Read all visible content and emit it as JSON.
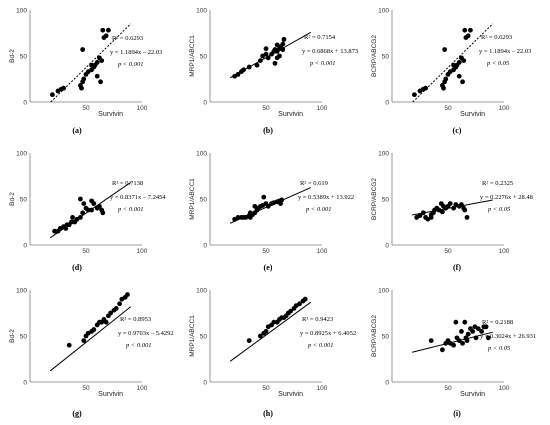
{
  "chart_data": [
    {
      "type": "scatter",
      "panel_label": "(a)",
      "ylabel": "Bd-2",
      "xlabel": "Survivin",
      "yticks": [
        "100",
        "50",
        "0"
      ],
      "xticks": [
        "50",
        "100"
      ],
      "xlim": [
        0,
        100
      ],
      "ylim": [
        0,
        100
      ],
      "r2": "R² = 0.6293",
      "equation": "y = 1.1894x – 22.03",
      "pvalue": "p < 0.001",
      "line_style": "dotted",
      "fit": [
        1.1894,
        -22.03
      ],
      "points": [
        [
          20,
          8
        ],
        [
          25,
          12
        ],
        [
          28,
          14
        ],
        [
          30,
          15
        ],
        [
          45,
          18
        ],
        [
          46,
          15
        ],
        [
          47,
          22
        ],
        [
          48,
          25
        ],
        [
          50,
          30
        ],
        [
          52,
          33
        ],
        [
          55,
          35
        ],
        [
          57,
          38
        ],
        [
          58,
          40
        ],
        [
          60,
          43
        ],
        [
          62,
          48
        ],
        [
          63,
          22
        ],
        [
          64,
          45
        ],
        [
          65,
          78
        ],
        [
          66,
          70
        ],
        [
          68,
          72
        ],
        [
          70,
          78
        ],
        [
          47,
          57
        ],
        [
          55,
          40
        ],
        [
          60,
          28
        ]
      ]
    },
    {
      "type": "scatter",
      "panel_label": "(b)",
      "ylabel": "MRP1/ABCC1",
      "xlabel": "Survivin",
      "yticks": [
        "100",
        "50",
        "0"
      ],
      "xticks": [
        "50",
        "100"
      ],
      "xlim": [
        0,
        100
      ],
      "ylim": [
        0,
        100
      ],
      "r2": "R² = 0.7154",
      "equation": "y = 0.6868x + 13.873",
      "pvalue": "p < 0.001",
      "line_style": "solid",
      "fit": [
        0.6868,
        13.873
      ],
      "points": [
        [
          22,
          28
        ],
        [
          25,
          30
        ],
        [
          28,
          33
        ],
        [
          30,
          35
        ],
        [
          35,
          38
        ],
        [
          45,
          45
        ],
        [
          47,
          50
        ],
        [
          50,
          52
        ],
        [
          50,
          58
        ],
        [
          52,
          48
        ],
        [
          55,
          52
        ],
        [
          57,
          55
        ],
        [
          58,
          57
        ],
        [
          60,
          55
        ],
        [
          60,
          62
        ],
        [
          62,
          50
        ],
        [
          62,
          58
        ],
        [
          63,
          60
        ],
        [
          65,
          57
        ],
        [
          65,
          63
        ],
        [
          66,
          68
        ],
        [
          58,
          42
        ],
        [
          42,
          40
        ],
        [
          60,
          48
        ]
      ]
    },
    {
      "type": "scatter",
      "panel_label": "(c)",
      "ylabel": "BCRP/ABCG2",
      "xlabel": "Survivin",
      "yticks": [
        "100",
        "50",
        "0"
      ],
      "xticks": [
        "50",
        "100"
      ],
      "xlim": [
        0,
        100
      ],
      "ylim": [
        0,
        100
      ],
      "r2": "R² = 0.6293",
      "equation": "y = 1.1894x – 22.03",
      "pvalue": "p < 0.05",
      "line_style": "dotted",
      "fit": [
        1.1894,
        -22.03
      ],
      "points": [
        [
          20,
          8
        ],
        [
          25,
          12
        ],
        [
          28,
          14
        ],
        [
          30,
          15
        ],
        [
          45,
          18
        ],
        [
          46,
          15
        ],
        [
          47,
          22
        ],
        [
          48,
          25
        ],
        [
          50,
          30
        ],
        [
          52,
          33
        ],
        [
          55,
          35
        ],
        [
          57,
          38
        ],
        [
          58,
          40
        ],
        [
          60,
          43
        ],
        [
          62,
          48
        ],
        [
          63,
          22
        ],
        [
          64,
          45
        ],
        [
          65,
          78
        ],
        [
          66,
          70
        ],
        [
          68,
          72
        ],
        [
          70,
          78
        ],
        [
          47,
          57
        ],
        [
          55,
          40
        ],
        [
          60,
          28
        ]
      ]
    },
    {
      "type": "scatter",
      "panel_label": "(d)",
      "ylabel": "Bd-2",
      "xlabel": "",
      "yticks": [
        "100",
        "50",
        "0"
      ],
      "xticks": [
        "50",
        "100"
      ],
      "xlim": [
        0,
        100
      ],
      "ylim": [
        0,
        100
      ],
      "r2": "R² = 0.7138",
      "equation": "y = 0.8371x – 7.2454",
      "pvalue": "p < 0.001",
      "line_style": "solid",
      "fit": [
        0.8371,
        -7.2454
      ],
      "points": [
        [
          22,
          15
        ],
        [
          25,
          15
        ],
        [
          27,
          18
        ],
        [
          30,
          20
        ],
        [
          32,
          18
        ],
        [
          33,
          22
        ],
        [
          35,
          22
        ],
        [
          37,
          25
        ],
        [
          40,
          25
        ],
        [
          42,
          28
        ],
        [
          45,
          30
        ],
        [
          47,
          35
        ],
        [
          48,
          45
        ],
        [
          50,
          40
        ],
        [
          52,
          38
        ],
        [
          55,
          38
        ],
        [
          57,
          45
        ],
        [
          60,
          40
        ],
        [
          62,
          42
        ],
        [
          64,
          38
        ],
        [
          65,
          35
        ],
        [
          45,
          50
        ],
        [
          55,
          48
        ],
        [
          38,
          30
        ]
      ]
    },
    {
      "type": "scatter",
      "panel_label": "(e)",
      "ylabel": "MRP1/ABCC1",
      "xlabel": "",
      "yticks": [
        "100",
        "50",
        "0"
      ],
      "xticks": [
        "50",
        "100"
      ],
      "xlim": [
        0,
        100
      ],
      "ylim": [
        0,
        100
      ],
      "r2": "R² = 0.619",
      "equation": "y = 0.5389x + 13.922",
      "pvalue": "p < 0.001",
      "line_style": "solid",
      "fit": [
        0.5389,
        13.922
      ],
      "points": [
        [
          22,
          28
        ],
        [
          25,
          30
        ],
        [
          28,
          30
        ],
        [
          30,
          30
        ],
        [
          32,
          30
        ],
        [
          35,
          32
        ],
        [
          36,
          30
        ],
        [
          38,
          33
        ],
        [
          40,
          35
        ],
        [
          42,
          38
        ],
        [
          43,
          40
        ],
        [
          45,
          42
        ],
        [
          47,
          43
        ],
        [
          48,
          52
        ],
        [
          50,
          45
        ],
        [
          52,
          42
        ],
        [
          55,
          45
        ],
        [
          57,
          46
        ],
        [
          60,
          47
        ],
        [
          62,
          48
        ],
        [
          63,
          45
        ],
        [
          64,
          49
        ],
        [
          40,
          42
        ],
        [
          36,
          35
        ]
      ]
    },
    {
      "type": "scatter",
      "panel_label": "(f)",
      "ylabel": "BCRP/ABCG2",
      "xlabel": "",
      "yticks": [
        "100",
        "50",
        "0"
      ],
      "xticks": [
        "50",
        "100"
      ],
      "xlim": [
        0,
        100
      ],
      "ylim": [
        0,
        100
      ],
      "r2": "R² = 0.2325",
      "equation": "y = 0.2276x + 28.48",
      "pvalue": "p < 0.05",
      "line_style": "solid",
      "fit": [
        0.2276,
        28.48
      ],
      "points": [
        [
          22,
          30
        ],
        [
          25,
          32
        ],
        [
          28,
          35
        ],
        [
          30,
          30
        ],
        [
          32,
          28
        ],
        [
          35,
          30
        ],
        [
          37,
          35
        ],
        [
          38,
          38
        ],
        [
          40,
          40
        ],
        [
          42,
          38
        ],
        [
          44,
          45
        ],
        [
          46,
          42
        ],
        [
          48,
          40
        ],
        [
          50,
          42
        ],
        [
          52,
          45
        ],
        [
          55,
          40
        ],
        [
          57,
          44
        ],
        [
          60,
          42
        ],
        [
          62,
          44
        ],
        [
          64,
          40
        ],
        [
          65,
          38
        ],
        [
          67,
          30
        ],
        [
          45,
          36
        ],
        [
          35,
          33
        ]
      ]
    },
    {
      "type": "scatter",
      "panel_label": "(g)",
      "ylabel": "Bd-2",
      "xlabel": "Survivin",
      "yticks": [
        "100",
        "50",
        "0"
      ],
      "xticks": [
        "50",
        "100"
      ],
      "xlim": [
        0,
        100
      ],
      "ylim": [
        0,
        100
      ],
      "r2": "R² = 0.8953",
      "equation": "y = 0.9703x – 5.4292",
      "pvalue": "p < 0.001",
      "line_style": "solid",
      "fit": [
        0.9703,
        -5.4292
      ],
      "points": [
        [
          35,
          40
        ],
        [
          48,
          45
        ],
        [
          50,
          50
        ],
        [
          52,
          53
        ],
        [
          55,
          55
        ],
        [
          57,
          57
        ],
        [
          60,
          62
        ],
        [
          62,
          65
        ],
        [
          64,
          65
        ],
        [
          66,
          68
        ],
        [
          68,
          65
        ],
        [
          70,
          72
        ],
        [
          72,
          75
        ],
        [
          75,
          78
        ],
        [
          77,
          80
        ],
        [
          80,
          85
        ],
        [
          82,
          90
        ],
        [
          85,
          92
        ],
        [
          87,
          95
        ]
      ]
    },
    {
      "type": "scatter",
      "panel_label": "(h)",
      "ylabel": "MRP1/ABCC1",
      "xlabel": "Survivin",
      "yticks": [
        "100",
        "50",
        "0"
      ],
      "xticks": [
        "50",
        "100"
      ],
      "xlim": [
        0,
        100
      ],
      "ylim": [
        0,
        100
      ],
      "r2": "R² = 0.9423",
      "equation": "y = 0.8925x + 6.4052",
      "pvalue": "p < 0.001",
      "line_style": "solid",
      "fit": [
        0.8925,
        6.4052
      ],
      "points": [
        [
          35,
          45
        ],
        [
          45,
          50
        ],
        [
          48,
          53
        ],
        [
          50,
          55
        ],
        [
          52,
          60
        ],
        [
          55,
          62
        ],
        [
          57,
          65
        ],
        [
          60,
          65
        ],
        [
          62,
          68
        ],
        [
          64,
          70
        ],
        [
          66,
          70
        ],
        [
          68,
          72
        ],
        [
          70,
          75
        ],
        [
          72,
          77
        ],
        [
          75,
          80
        ],
        [
          77,
          83
        ],
        [
          80,
          85
        ],
        [
          83,
          88
        ],
        [
          85,
          90
        ]
      ]
    },
    {
      "type": "scatter",
      "panel_label": "(i)",
      "ylabel": "BCRP/ABCG2",
      "xlabel": "Survivin",
      "yticks": [
        "100",
        "50",
        "0"
      ],
      "xticks": [
        "50",
        "100"
      ],
      "xlim": [
        0,
        100
      ],
      "ylim": [
        0,
        100
      ],
      "r2": "R² = 0.2188",
      "equation": "y = 0.3024x + 26.931",
      "pvalue": "p < 0.05",
      "line_style": "solid",
      "fit": [
        0.3024,
        26.931
      ],
      "points": [
        [
          35,
          45
        ],
        [
          45,
          35
        ],
        [
          48,
          42
        ],
        [
          50,
          45
        ],
        [
          52,
          42
        ],
        [
          55,
          40
        ],
        [
          57,
          65
        ],
        [
          58,
          48
        ],
        [
          60,
          45
        ],
        [
          62,
          55
        ],
        [
          63,
          42
        ],
        [
          65,
          65
        ],
        [
          66,
          48
        ],
        [
          67,
          45
        ],
        [
          68,
          52
        ],
        [
          70,
          58
        ],
        [
          72,
          55
        ],
        [
          74,
          60
        ],
        [
          75,
          48
        ],
        [
          77,
          58
        ],
        [
          80,
          55
        ],
        [
          82,
          60
        ],
        [
          84,
          60
        ],
        [
          86,
          48
        ]
      ]
    }
  ]
}
